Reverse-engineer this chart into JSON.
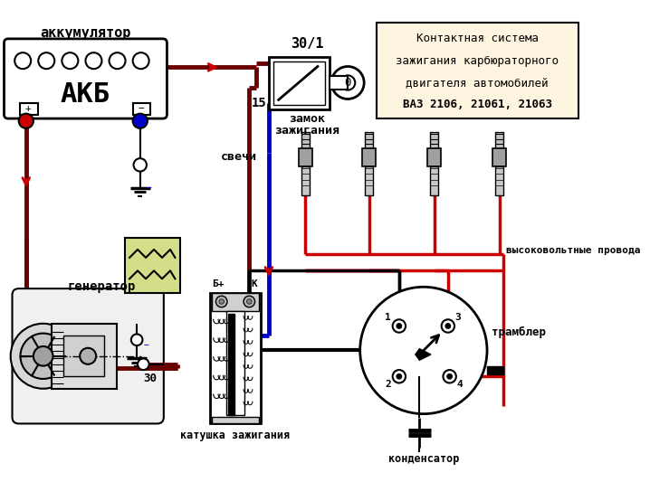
{
  "bg_color": "#ffffff",
  "dark_red": "#6b0000",
  "red": "#cc0000",
  "blue": "#0000cc",
  "black": "#000000",
  "yellow_green": "#d4dd88",
  "cream": "#fdf5e0",
  "akkum_label": "аккумулятор",
  "akb_label": "АКБ",
  "generator_label": "генератор",
  "zamok_label1": "замок",
  "zamok_label2": "зажигания",
  "label_30_1": "30/1",
  "label_15": "15",
  "label_30": "30",
  "label_Bplus": "Б+",
  "label_K": "К",
  "katushka_label": "катушка зажигания",
  "svech_label": "свечи",
  "provoda_label": "высоковольтные провода",
  "trambler_label": "трамблер",
  "kondensator_label": "конденсатор",
  "title_lines": [
    "Контактная система",
    "зажигания карбюраторного",
    "двигателя автомобилей",
    "ВАЗ 2106, 21061, 21063"
  ]
}
